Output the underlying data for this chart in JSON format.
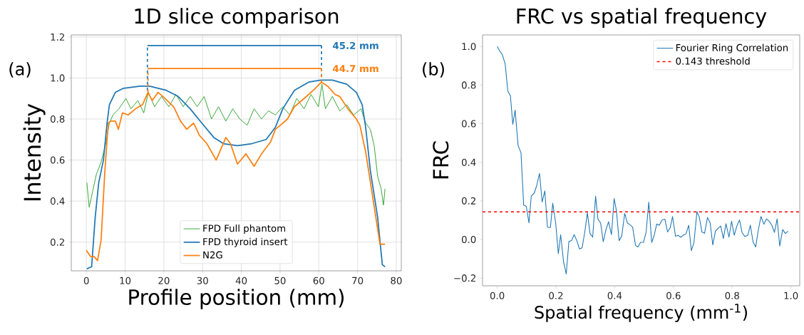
{
  "chart_data": [
    {
      "type": "line",
      "title": "1D slice comparison",
      "xlabel": "Profile position (mm)",
      "ylabel": "Intensity",
      "xlim": [
        -3.9,
        81.3
      ],
      "ylim": [
        0.06,
        1.21
      ],
      "xticks": [
        0,
        10,
        20,
        30,
        40,
        50,
        60,
        70,
        80
      ],
      "yticks": [
        0.2,
        0.4,
        0.6,
        0.8,
        {
          "value": 1,
          "label": "1.0"
        },
        1.2
      ],
      "grid": true,
      "legend": "bottom",
      "series": [
        {
          "name": "FPD Full phantom",
          "color": "#2ca02c",
          "x": [
            0.12,
            0.73,
            1.65,
            2.57,
            3.8,
            5.0,
            5.94,
            6.86,
            8.4,
            10.2,
            11.5,
            13.3,
            14.8,
            16.0,
            17.6,
            19.4,
            21.3,
            23.1,
            25.0,
            26.8,
            28.6,
            30.4,
            32.3,
            34.1,
            36.0,
            37.8,
            39.6,
            41.5,
            43.3,
            45.2,
            47.0,
            48.8,
            50.7,
            52.5,
            54.3,
            56.2,
            58.0,
            59.9,
            60.8,
            61.7,
            63.5,
            65.4,
            67.2,
            69.0,
            70.9,
            72.1,
            73.3,
            74.3,
            75.2,
            76.1,
            76.7,
            77.1
          ],
          "values": [
            0.49,
            0.37,
            0.45,
            0.53,
            0.59,
            0.68,
            0.78,
            0.82,
            0.85,
            0.9,
            0.85,
            0.89,
            0.83,
            0.93,
            0.86,
            0.91,
            0.86,
            0.92,
            0.86,
            0.91,
            0.86,
            0.91,
            0.8,
            0.86,
            0.79,
            0.85,
            0.8,
            0.77,
            0.85,
            0.8,
            0.84,
            0.82,
            0.86,
            0.82,
            0.9,
            0.85,
            0.92,
            0.86,
            0.97,
            0.85,
            0.91,
            0.84,
            0.87,
            0.82,
            0.85,
            0.78,
            0.75,
            0.67,
            0.52,
            0.46,
            0.38,
            0.46
          ]
        },
        {
          "name": "FPD thyroid insert",
          "color": "#1f77b4",
          "x": [
            0.12,
            1.35,
            2.27,
            3.18,
            4.4,
            5.33,
            5.94,
            7.47,
            9.6,
            13.9,
            16.3,
            20.6,
            23.7,
            26.8,
            29.8,
            32.9,
            35.4,
            39.0,
            42.7,
            46.4,
            48.8,
            50.7,
            53.7,
            57.4,
            60.5,
            63.5,
            67.2,
            69.7,
            71.2,
            72.1,
            73.3,
            75.2,
            76.4,
            77.1
          ],
          "values": [
            0.07,
            0.08,
            0.32,
            0.49,
            0.6,
            0.78,
            0.87,
            0.93,
            0.95,
            0.96,
            0.96,
            0.94,
            0.91,
            0.85,
            0.78,
            0.71,
            0.68,
            0.67,
            0.68,
            0.7,
            0.76,
            0.85,
            0.94,
            0.98,
            0.99,
            0.99,
            0.97,
            0.93,
            0.87,
            0.76,
            0.55,
            0.32,
            0.09,
            0.08
          ]
        },
        {
          "name": "N2G",
          "color": "#ff7f0e",
          "x": [
            0.0,
            1.04,
            1.96,
            2.88,
            3.8,
            4.72,
            5.64,
            6.25,
            7.47,
            8.27,
            9.3,
            10.8,
            12.7,
            14.5,
            15.9,
            17.0,
            18.5,
            20.3,
            22.5,
            24.3,
            25.9,
            27.7,
            29.2,
            31.1,
            33.5,
            36.0,
            37.2,
            39.0,
            41.2,
            43.3,
            45.2,
            47.6,
            48.8,
            50.1,
            51.9,
            53.7,
            56.2,
            58.6,
            60.7,
            62.3,
            64.2,
            65.4,
            67.5,
            69.7,
            70.6,
            72.1,
            74.0,
            75.8,
            77.1
          ],
          "values": [
            0.16,
            0.13,
            0.13,
            0.11,
            0.21,
            0.53,
            0.78,
            0.79,
            0.79,
            0.75,
            0.83,
            0.82,
            0.85,
            0.87,
            0.93,
            0.89,
            0.93,
            0.9,
            0.86,
            0.79,
            0.75,
            0.78,
            0.72,
            0.68,
            0.6,
            0.71,
            0.68,
            0.58,
            0.63,
            0.57,
            0.63,
            0.69,
            0.75,
            0.77,
            0.8,
            0.86,
            0.9,
            0.94,
            0.98,
            0.96,
            0.92,
            0.91,
            0.85,
            0.8,
            0.77,
            0.64,
            0.41,
            0.19,
            0.19
          ]
        },
        {
          "color": "#1f77b4",
          "x": [
            15.75,
            60.7
          ],
          "values": [
            1.158,
            1.158
          ]
        },
        {
          "color": "#1f77b4",
          "line_style": "dashed",
          "x": [
            15.75,
            15.75,
            38,
            60.7,
            60.7
          ],
          "values": [
            0.94,
            1.158,
            null,
            1.158,
            0.99
          ]
        },
        {
          "color": "#ff7f0e",
          "x": [
            15.9,
            60.7
          ],
          "values": [
            1.046,
            1.046
          ]
        },
        {
          "color": "#ff7f0e",
          "line_style": "dashed",
          "x": [
            15.9,
            15.9,
            38,
            60.7,
            60.7
          ],
          "values": [
            0.93,
            1.046,
            null,
            1.046,
            0.98
          ]
        }
      ],
      "annotations": [
        "(a)",
        {
          "text": "45.2 mm",
          "x": 60.7,
          "y": 1.158
        },
        {
          "text": "44.7 mm",
          "x": 60.7,
          "y": 1.046
        }
      ]
    },
    {
      "type": "line",
      "title": "FRC vs spatial frequency",
      "xlabel": "Spatial frequency (mm$^{-1}$)",
      "ylabel": "FRC",
      "xlim": [
        -0.05,
        1.03
      ],
      "ylim": [
        -0.24,
        1.06
      ],
      "xticks": [
        {
          "value": 0,
          "label": "0.0"
        },
        0.2,
        0.4,
        0.6,
        0.8,
        {
          "value": 1,
          "label": "1.0"
        }
      ],
      "yticks": [
        {
          "value": -0.2,
          "label": "−0.2"
        },
        {
          "value": 0,
          "label": "0.0"
        },
        0.2,
        0.4,
        0.6,
        0.8,
        {
          "value": 1,
          "label": "1.0"
        }
      ],
      "legend": "top right",
      "series": [
        {
          "name": "Fourier Ring Correlation",
          "color": "#1f77b4",
          "x": [
            0.0,
            0.009,
            0.017,
            0.027,
            0.036,
            0.045,
            0.053,
            0.061,
            0.071,
            0.081,
            0.09,
            0.099,
            0.108,
            0.116,
            0.126,
            0.134,
            0.144,
            0.153,
            0.162,
            0.171,
            0.181,
            0.189,
            0.199,
            0.208,
            0.216,
            0.226,
            0.235,
            0.244,
            0.253,
            0.262,
            0.271,
            0.28,
            0.289,
            0.298,
            0.307,
            0.316,
            0.325,
            0.335,
            0.343,
            0.352,
            0.361,
            0.37,
            0.379,
            0.389,
            0.398,
            0.406,
            0.415,
            0.424,
            0.434,
            0.443,
            0.452,
            0.461,
            0.471,
            0.479,
            0.488,
            0.498,
            0.507,
            0.516,
            0.526,
            0.535,
            0.543,
            0.552,
            0.561,
            0.571,
            0.58,
            0.589,
            0.597,
            0.607,
            0.616,
            0.625,
            0.633,
            0.643,
            0.652,
            0.661,
            0.67,
            0.68,
            0.688,
            0.697,
            0.706,
            0.716,
            0.725,
            0.734,
            0.743,
            0.752,
            0.761,
            0.77,
            0.779,
            0.789,
            0.798,
            0.807,
            0.816,
            0.825,
            0.834,
            0.843,
            0.853,
            0.862,
            0.871,
            0.88,
            0.889,
            0.898,
            0.908,
            0.917,
            0.926,
            0.935,
            0.944,
            0.953,
            0.962,
            0.972,
            0.981,
            0.99
          ],
          "values": [
            1.0,
            0.975,
            0.959,
            0.91,
            0.769,
            0.744,
            0.597,
            0.67,
            0.488,
            0.449,
            0.178,
            0.172,
            0.086,
            0.226,
            0.24,
            0.277,
            0.342,
            0.194,
            0.252,
            0.064,
            0.062,
            0.188,
            0.086,
            -0.074,
            0.025,
            -0.117,
            -0.179,
            -0.01,
            -0.006,
            0.025,
            -0.006,
            -0.049,
            -0.043,
            0.037,
            0.138,
            0.031,
            0.012,
            0.224,
            0.105,
            0.086,
            -0.012,
            0.049,
            0.092,
            0.025,
            0.212,
            0.148,
            -0.006,
            0.018,
            0.135,
            0.086,
            0.076,
            0.064,
            -0.031,
            -0.039,
            -0.015,
            -0.015,
            0.039,
            0.194,
            -0.016,
            0.025,
            0.08,
            0.074,
            0.101,
            0.105,
            0.039,
            0.062,
            0.119,
            0.017,
            0.021,
            0.012,
            0.022,
            0.03,
            0.074,
            -0.058,
            -0.015,
            0.144,
            0.116,
            0.039,
            0.032,
            0.114,
            0.086,
            -0.028,
            0.043,
            0.058,
            0.07,
            0.005,
            0.082,
            0.012,
            0.095,
            0.022,
            0.07,
            0.101,
            0.034,
            0.016,
            0.021,
            0.074,
            -0.012,
            -0.039,
            0.049,
            0.119,
            0.079,
            0.107,
            0.095,
            0.074,
            0.037,
            0.107,
            -0.034,
            0.052,
            0.031,
            0.043
          ]
        }
      ],
      "ref_lines": [
        {
          "axis": "y",
          "value": 0.143,
          "label": "0.143 threshold",
          "color": "#ff0000",
          "line_style": "dashed"
        }
      ],
      "annotations": [
        "(b)"
      ]
    }
  ]
}
